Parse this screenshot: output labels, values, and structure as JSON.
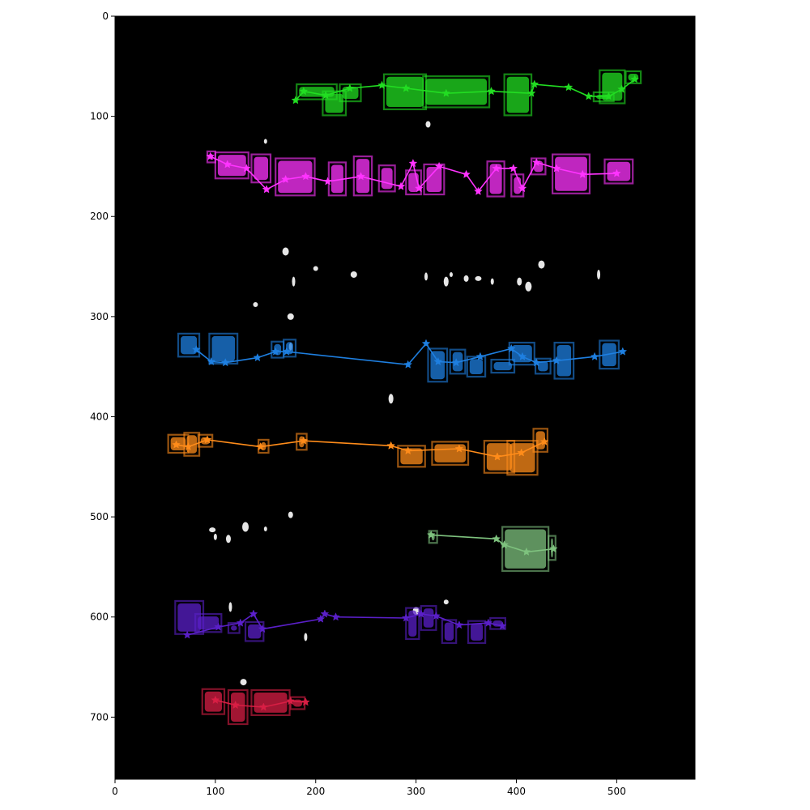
{
  "chart_data": {
    "type": "scatter",
    "title": "",
    "xlabel": "",
    "ylabel": "",
    "xlim": [
      0,
      578
    ],
    "ylim": [
      762,
      0
    ],
    "y_inverted": true,
    "grid": false,
    "background": "#000000",
    "xticks": [
      0,
      100,
      200,
      300,
      400,
      500
    ],
    "yticks": [
      0,
      100,
      200,
      300,
      400,
      500,
      600,
      700
    ],
    "series": [
      {
        "color": "#22dd22",
        "points": [
          [
            180,
            84
          ],
          [
            188,
            75
          ],
          [
            210,
            79
          ],
          [
            234,
            72
          ],
          [
            266,
            69
          ],
          [
            290,
            72
          ],
          [
            330,
            77
          ],
          [
            375,
            75
          ],
          [
            415,
            77
          ],
          [
            418,
            68
          ],
          [
            452,
            71
          ],
          [
            472,
            80
          ],
          [
            492,
            80
          ],
          [
            505,
            73
          ],
          [
            518,
            63
          ]
        ],
        "boxes": [
          [
            181,
            68,
            221,
            83
          ],
          [
            207,
            75,
            230,
            99
          ],
          [
            224,
            68,
            245,
            85
          ],
          [
            268,
            58,
            310,
            93
          ],
          [
            307,
            60,
            373,
            91
          ],
          [
            388,
            58,
            415,
            99
          ],
          [
            477,
            76,
            497,
            85
          ],
          [
            483,
            54,
            508,
            87
          ],
          [
            509,
            55,
            524,
            67
          ]
        ]
      },
      {
        "color": "#ff33ff",
        "points": [
          [
            95,
            140
          ],
          [
            112,
            148
          ],
          [
            131,
            152
          ],
          [
            151,
            173
          ],
          [
            170,
            163
          ],
          [
            190,
            160
          ],
          [
            212,
            165
          ],
          [
            245,
            160
          ],
          [
            285,
            170
          ],
          [
            297,
            147
          ],
          [
            303,
            172
          ],
          [
            323,
            150
          ],
          [
            350,
            158
          ],
          [
            362,
            175
          ],
          [
            380,
            152
          ],
          [
            397,
            152
          ],
          [
            406,
            172
          ],
          [
            420,
            146
          ],
          [
            440,
            152
          ],
          [
            466,
            158
          ],
          [
            500,
            157
          ]
        ],
        "boxes": [
          [
            92,
            135,
            100,
            146
          ],
          [
            100,
            136,
            133,
            162
          ],
          [
            136,
            138,
            155,
            166
          ],
          [
            160,
            142,
            199,
            179
          ],
          [
            213,
            146,
            230,
            179
          ],
          [
            238,
            140,
            256,
            179
          ],
          [
            263,
            149,
            279,
            175
          ],
          [
            290,
            154,
            305,
            178
          ],
          [
            308,
            148,
            328,
            178
          ],
          [
            371,
            145,
            388,
            180
          ],
          [
            395,
            158,
            407,
            180
          ],
          [
            415,
            142,
            429,
            158
          ],
          [
            436,
            138,
            473,
            177
          ],
          [
            488,
            143,
            516,
            167
          ]
        ]
      },
      {
        "color": "#1e7fe0",
        "points": [
          [
            81,
            333
          ],
          [
            96,
            345
          ],
          [
            110,
            346
          ],
          [
            142,
            341
          ],
          [
            160,
            335
          ],
          [
            171,
            335
          ],
          [
            292,
            348
          ],
          [
            310,
            327
          ],
          [
            322,
            345
          ],
          [
            340,
            346
          ],
          [
            364,
            340
          ],
          [
            395,
            332
          ],
          [
            406,
            340
          ],
          [
            420,
            346
          ],
          [
            440,
            344
          ],
          [
            478,
            340
          ],
          [
            506,
            335
          ]
        ],
        "boxes": [
          [
            63,
            317,
            84,
            340
          ],
          [
            94,
            317,
            122,
            347
          ],
          [
            156,
            325,
            168,
            341
          ],
          [
            168,
            323,
            180,
            340
          ],
          [
            312,
            332,
            331,
            365
          ],
          [
            334,
            333,
            349,
            357
          ],
          [
            351,
            340,
            369,
            360
          ],
          [
            375,
            343,
            398,
            356
          ],
          [
            393,
            326,
            418,
            348
          ],
          [
            419,
            342,
            434,
            357
          ],
          [
            438,
            326,
            457,
            362
          ],
          [
            483,
            324,
            502,
            352
          ]
        ]
      },
      {
        "color": "#ff8c1a",
        "points": [
          [
            61,
            428
          ],
          [
            73,
            430
          ],
          [
            92,
            423
          ],
          [
            145,
            430
          ],
          [
            188,
            424
          ],
          [
            275,
            429
          ],
          [
            292,
            434
          ],
          [
            343,
            432
          ],
          [
            381,
            440
          ],
          [
            405,
            436
          ],
          [
            428,
            425
          ]
        ],
        "boxes": [
          [
            53,
            418,
            73,
            436
          ],
          [
            69,
            416,
            84,
            439
          ],
          [
            83,
            418,
            97,
            430
          ],
          [
            143,
            423,
            153,
            436
          ],
          [
            181,
            417,
            191,
            433
          ],
          [
            282,
            429,
            309,
            450
          ],
          [
            316,
            425,
            352,
            448
          ],
          [
            368,
            424,
            398,
            456
          ],
          [
            391,
            424,
            421,
            458
          ],
          [
            417,
            412,
            431,
            435
          ]
        ]
      },
      {
        "color": "#7ec27e",
        "points": [
          [
            315,
            518
          ],
          [
            380,
            522
          ],
          [
            388,
            528
          ],
          [
            410,
            535
          ],
          [
            437,
            532
          ]
        ],
        "boxes": [
          [
            313,
            514,
            321,
            526
          ],
          [
            386,
            510,
            432,
            554
          ],
          [
            432,
            519,
            439,
            543
          ]
        ]
      },
      {
        "color": "#5a1fc8",
        "points": [
          [
            72,
            618
          ],
          [
            103,
            610
          ],
          [
            125,
            606
          ],
          [
            138,
            597
          ],
          [
            147,
            612
          ],
          [
            205,
            602
          ],
          [
            209,
            597
          ],
          [
            220,
            600
          ],
          [
            290,
            601
          ],
          [
            305,
            597
          ],
          [
            320,
            599
          ],
          [
            343,
            608
          ],
          [
            372,
            606
          ],
          [
            386,
            609
          ]
        ],
        "boxes": [
          [
            60,
            584,
            88,
            617
          ],
          [
            80,
            597,
            106,
            615
          ],
          [
            113,
            606,
            124,
            616
          ],
          [
            130,
            605,
            148,
            624
          ],
          [
            290,
            591,
            303,
            622
          ],
          [
            305,
            589,
            320,
            613
          ],
          [
            326,
            603,
            340,
            626
          ],
          [
            352,
            604,
            369,
            626
          ],
          [
            374,
            601,
            389,
            612
          ]
        ]
      },
      {
        "color": "#d81e44",
        "points": [
          [
            100,
            683
          ],
          [
            120,
            688
          ],
          [
            148,
            690
          ],
          [
            175,
            684
          ],
          [
            190,
            685
          ]
        ],
        "boxes": [
          [
            87,
            672,
            109,
            697
          ],
          [
            113,
            673,
            132,
            707
          ],
          [
            136,
            673,
            174,
            698
          ],
          [
            175,
            680,
            189,
            692
          ]
        ]
      }
    ]
  }
}
